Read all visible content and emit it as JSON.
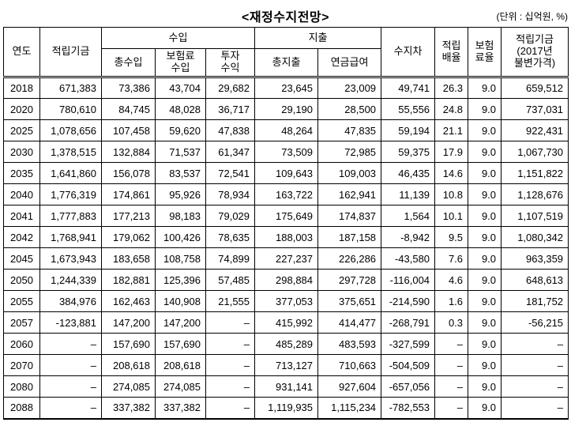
{
  "title": "<재정수지전망>",
  "unit_note": "(단위 : 십억원, %)",
  "table": {
    "header": {
      "year": "연도",
      "fund": "적립기금",
      "revenue_group": "수입",
      "revenue_total": "총수입",
      "revenue_premium": "보험료\n수입",
      "revenue_investment": "투자\n수익",
      "expenditure_group": "지출",
      "expenditure_total": "총지출",
      "pension_benefit": "연금급여",
      "balance": "수지차",
      "fund_ratio": "적립\n배율",
      "premium_rate": "보험\n료율",
      "fund_real": "적립기금\n(2017년\n불변가격)"
    },
    "rows": [
      [
        "2018",
        "671,383",
        "73,386",
        "43,704",
        "29,682",
        "23,645",
        "23,009",
        "49,741",
        "26.3",
        "9.0",
        "659,512"
      ],
      [
        "2020",
        "780,610",
        "84,745",
        "48,028",
        "36,717",
        "29,190",
        "28,500",
        "55,556",
        "24.8",
        "9.0",
        "737,031"
      ],
      [
        "2025",
        "1,078,656",
        "107,458",
        "59,620",
        "47,838",
        "48,264",
        "47,835",
        "59,194",
        "21.1",
        "9.0",
        "922,431"
      ],
      [
        "2030",
        "1,378,515",
        "132,884",
        "71,537",
        "61,347",
        "73,509",
        "72,985",
        "59,375",
        "17.9",
        "9.0",
        "1,067,730"
      ],
      [
        "2035",
        "1,641,860",
        "156,078",
        "83,537",
        "72,541",
        "109,643",
        "109,003",
        "46,435",
        "14.6",
        "9.0",
        "1,151,822"
      ],
      [
        "2040",
        "1,776,319",
        "174,861",
        "95,926",
        "78,934",
        "163,722",
        "162,941",
        "11,139",
        "10.8",
        "9.0",
        "1,128,676"
      ],
      [
        "2041",
        "1,777,883",
        "177,213",
        "98,183",
        "79,029",
        "175,649",
        "174,837",
        "1,564",
        "10.1",
        "9.0",
        "1,107,519"
      ],
      [
        "2042",
        "1,768,941",
        "179,062",
        "100,426",
        "78,635",
        "188,003",
        "187,158",
        "-8,942",
        "9.5",
        "9.0",
        "1,080,342"
      ],
      [
        "2045",
        "1,673,943",
        "183,658",
        "108,758",
        "74,899",
        "227,237",
        "226,286",
        "-43,580",
        "7.6",
        "9.0",
        "963,359"
      ],
      [
        "2050",
        "1,244,339",
        "182,881",
        "125,396",
        "57,485",
        "298,884",
        "297,728",
        "-116,004",
        "4.6",
        "9.0",
        "648,613"
      ],
      [
        "2055",
        "384,976",
        "162,463",
        "140,908",
        "21,555",
        "377,053",
        "375,651",
        "-214,590",
        "1.6",
        "9.0",
        "181,752"
      ],
      [
        "2057",
        "-123,881",
        "147,200",
        "147,200",
        "–",
        "415,992",
        "414,477",
        "-268,791",
        "0.3",
        "9.0",
        "-56,215"
      ],
      [
        "2060",
        "–",
        "157,690",
        "157,690",
        "–",
        "485,289",
        "483,593",
        "-327,599",
        "–",
        "9.0",
        "–"
      ],
      [
        "2070",
        "–",
        "208,618",
        "208,618",
        "–",
        "713,127",
        "710,663",
        "-504,509",
        "–",
        "9.0",
        "–"
      ],
      [
        "2080",
        "–",
        "274,085",
        "274,085",
        "–",
        "931,141",
        "927,604",
        "-657,056",
        "–",
        "9.0",
        "–"
      ],
      [
        "2088",
        "–",
        "337,382",
        "337,382",
        "–",
        "1,119,935",
        "1,115,234",
        "-782,553",
        "–",
        "9.0",
        "–"
      ]
    ]
  }
}
